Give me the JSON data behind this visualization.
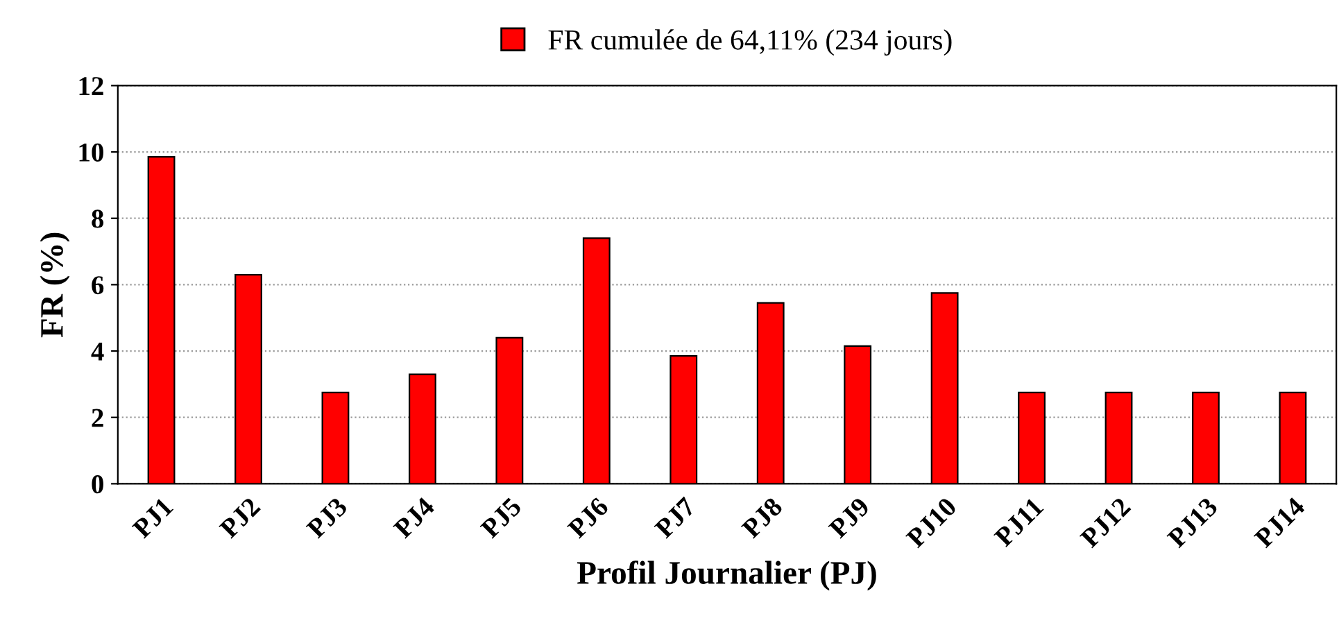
{
  "chart_data": {
    "type": "bar",
    "categories": [
      "PJ1",
      "PJ2",
      "PJ3",
      "PJ4",
      "PJ5",
      "PJ6",
      "PJ7",
      "PJ8",
      "PJ9",
      "PJ10",
      "PJ11",
      "PJ12",
      "PJ13",
      "PJ14"
    ],
    "series": [
      {
        "name": "FR cumulée de 64,11% (234 jours)",
        "color": "#ff0000",
        "values": [
          9.85,
          6.3,
          2.75,
          3.3,
          4.4,
          7.4,
          3.85,
          5.45,
          4.15,
          5.75,
          2.75,
          2.75,
          2.75,
          2.75
        ]
      }
    ],
    "xlabel": "Profil Journalier (PJ)",
    "ylabel": "FR (%)",
    "ylim": [
      0,
      12
    ],
    "yticks": [
      0,
      2,
      4,
      6,
      8,
      10,
      12
    ],
    "grid": "y",
    "legend": "top"
  }
}
